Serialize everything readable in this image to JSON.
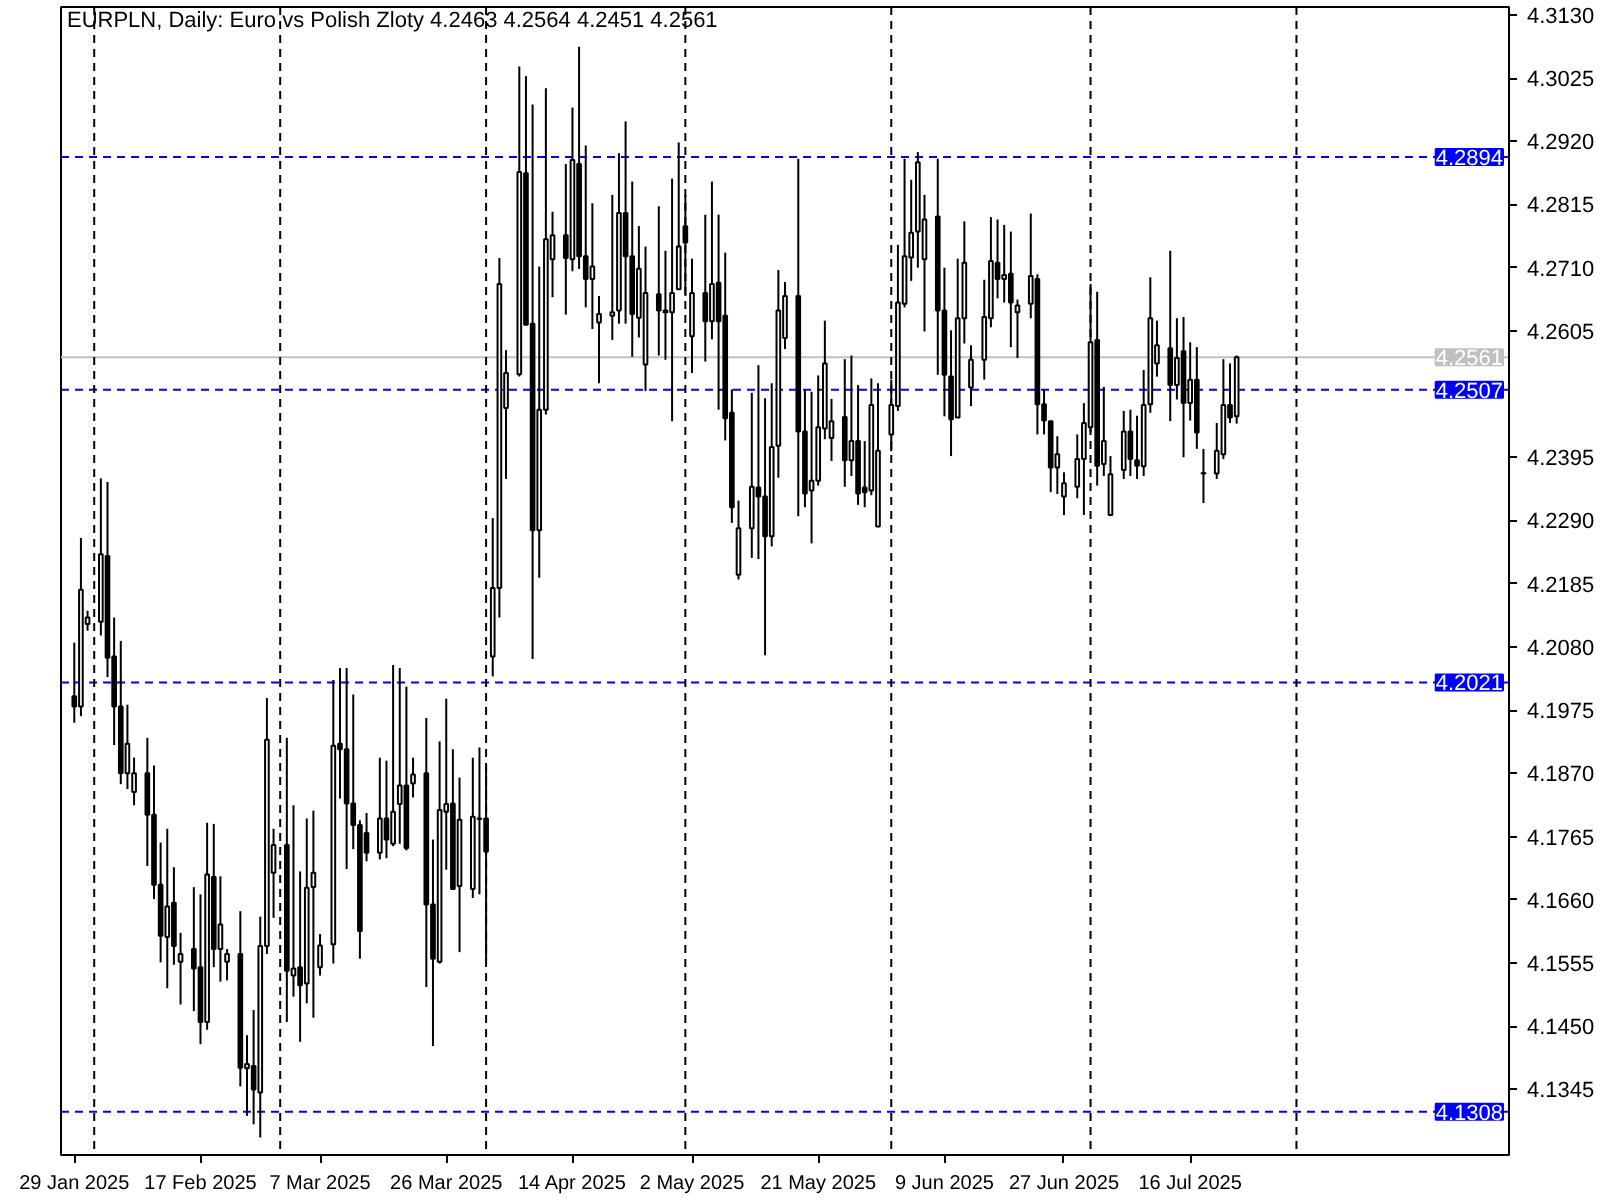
{
  "chart_data": {
    "type": "candlestick",
    "title": "EURPLN, Daily:  Euro vs Polish Zloty  4.2463 4.2564 4.2451 4.2561",
    "color": "#000000",
    "x": [
      "2025-01-29",
      "2025-01-30",
      "2025-01-31",
      "2025-02-02",
      "2025-02-03",
      "2025-02-04",
      "2025-02-05",
      "2025-02-06",
      "2025-02-07",
      "2025-02-09",
      "2025-02-10",
      "2025-02-11",
      "2025-02-12",
      "2025-02-13",
      "2025-02-14",
      "2025-02-16",
      "2025-02-17",
      "2025-02-18",
      "2025-02-19",
      "2025-02-20",
      "2025-02-21",
      "2025-02-23",
      "2025-02-24",
      "2025-02-25",
      "2025-02-26",
      "2025-02-27",
      "2025-02-28",
      "2025-03-02",
      "2025-03-03",
      "2025-03-04",
      "2025-03-05",
      "2025-03-06",
      "2025-03-07",
      "2025-03-09",
      "2025-03-10",
      "2025-03-11",
      "2025-03-12",
      "2025-03-13",
      "2025-03-14",
      "2025-03-16",
      "2025-03-17",
      "2025-03-18",
      "2025-03-19",
      "2025-03-20",
      "2025-03-21",
      "2025-03-23",
      "2025-03-24",
      "2025-03-25",
      "2025-03-26",
      "2025-03-27",
      "2025-03-28",
      "2025-03-30",
      "2025-03-31",
      "2025-04-01",
      "2025-04-02",
      "2025-04-03",
      "2025-04-04",
      "2025-04-06",
      "2025-04-07",
      "2025-04-08",
      "2025-04-09",
      "2025-04-10",
      "2025-04-11",
      "2025-04-13",
      "2025-04-14",
      "2025-04-15",
      "2025-04-16",
      "2025-04-17",
      "2025-04-18",
      "2025-04-20",
      "2025-04-21",
      "2025-04-22",
      "2025-04-23",
      "2025-04-24",
      "2025-04-25",
      "2025-04-27",
      "2025-04-28",
      "2025-04-29",
      "2025-04-30",
      "2025-05-01",
      "2025-05-02",
      "2025-05-04",
      "2025-05-05",
      "2025-05-06",
      "2025-05-07",
      "2025-05-08",
      "2025-05-09",
      "2025-05-11",
      "2025-05-12",
      "2025-05-13",
      "2025-05-14",
      "2025-05-15",
      "2025-05-16",
      "2025-05-18",
      "2025-05-19",
      "2025-05-20",
      "2025-05-21",
      "2025-05-22",
      "2025-05-23",
      "2025-05-25",
      "2025-05-26",
      "2025-05-27",
      "2025-05-28",
      "2025-05-29",
      "2025-05-30",
      "2025-06-01",
      "2025-06-02",
      "2025-06-03",
      "2025-06-04",
      "2025-06-05",
      "2025-06-06",
      "2025-06-08",
      "2025-06-09",
      "2025-06-10",
      "2025-06-11",
      "2025-06-12",
      "2025-06-13",
      "2025-06-15",
      "2025-06-16",
      "2025-06-17",
      "2025-06-18",
      "2025-06-19",
      "2025-06-20",
      "2025-06-22",
      "2025-06-23",
      "2025-06-24",
      "2025-06-25",
      "2025-06-26",
      "2025-06-27",
      "2025-06-29",
      "2025-06-30",
      "2025-07-01",
      "2025-07-02",
      "2025-07-03",
      "2025-07-04",
      "2025-07-06",
      "2025-07-07",
      "2025-07-08",
      "2025-07-09",
      "2025-07-10",
      "2025-07-11",
      "2025-07-13",
      "2025-07-14",
      "2025-07-15",
      "2025-07-16",
      "2025-07-17",
      "2025-07-18",
      "2025-07-20",
      "2025-07-21",
      "2025-07-22",
      "2025-07-23"
    ],
    "ohlc": [
      [
        4.1998,
        4.2087,
        4.1954,
        4.1981
      ],
      [
        4.1981,
        4.2261,
        4.1965,
        4.2175
      ],
      [
        4.2118,
        4.214,
        4.2107,
        4.2129
      ],
      [
        4.2122,
        4.236,
        4.2099,
        4.2234
      ],
      [
        4.2231,
        4.2354,
        4.203,
        4.2062
      ],
      [
        4.2064,
        4.2129,
        4.1917,
        4.1981
      ],
      [
        4.1981,
        4.209,
        4.1852,
        4.187
      ],
      [
        4.187,
        4.1984,
        4.1844,
        4.1919
      ],
      [
        4.1839,
        4.1896,
        4.1817,
        4.187
      ],
      [
        4.187,
        4.1929,
        4.1716,
        4.1801
      ],
      [
        4.1801,
        4.1883,
        4.1661,
        4.1685
      ],
      [
        4.1685,
        4.1755,
        4.1556,
        4.16
      ],
      [
        4.1598,
        4.1778,
        4.1513,
        4.1649
      ],
      [
        4.1655,
        4.1714,
        4.1552,
        4.1583
      ],
      [
        4.1557,
        4.1605,
        4.1486,
        4.157
      ],
      [
        4.1578,
        4.1681,
        4.1475,
        4.1546
      ],
      [
        4.1548,
        4.1669,
        4.142,
        4.1457
      ],
      [
        4.1457,
        4.1788,
        4.1444,
        4.1702
      ],
      [
        4.1698,
        4.1786,
        4.1548,
        4.1578
      ],
      [
        4.1578,
        4.1699,
        4.1524,
        4.1619
      ],
      [
        4.1557,
        4.1578,
        4.1526,
        4.157
      ],
      [
        4.157,
        4.1641,
        4.135,
        4.1381
      ],
      [
        4.138,
        4.1435,
        4.1301,
        4.1387
      ],
      [
        4.1384,
        4.1477,
        4.1287,
        4.1345
      ],
      [
        4.134,
        4.1632,
        4.1265,
        4.1583
      ],
      [
        4.1583,
        4.1995,
        4.157,
        4.1926
      ],
      [
        4.1705,
        4.1778,
        4.163,
        4.1751
      ],
      [
        4.1751,
        4.1929,
        4.1457,
        4.1542
      ],
      [
        4.1534,
        4.1817,
        4.1499,
        4.1546
      ],
      [
        4.1548,
        4.1707,
        4.1424,
        4.1518
      ],
      [
        4.1521,
        4.1795,
        4.1488,
        4.168
      ],
      [
        4.1681,
        4.1808,
        4.1464,
        4.1705
      ],
      [
        4.1548,
        4.1603,
        4.1534,
        4.1584
      ],
      [
        4.1586,
        4.2025,
        4.1554,
        4.1916
      ],
      [
        4.1919,
        4.2045,
        4.1828,
        4.191
      ],
      [
        4.191,
        4.2045,
        4.1711,
        4.182
      ],
      [
        4.182,
        4.2001,
        4.1744,
        4.1784
      ],
      [
        4.1784,
        4.1792,
        4.1562,
        4.1608
      ],
      [
        4.1771,
        4.1804,
        4.1724,
        4.1738
      ],
      [
        4.1738,
        4.1896,
        4.1727,
        4.1795
      ],
      [
        4.1795,
        4.1891,
        4.1729,
        4.176
      ],
      [
        4.1753,
        4.205,
        4.1749,
        4.1806
      ],
      [
        4.1819,
        4.2045,
        4.1753,
        4.185
      ],
      [
        4.185,
        4.2014,
        4.1742,
        4.1746
      ],
      [
        4.1853,
        4.1896,
        4.183,
        4.1868
      ],
      [
        4.187,
        4.1962,
        4.1515,
        4.1652
      ],
      [
        4.1652,
        4.176,
        4.1417,
        4.1562
      ],
      [
        4.1557,
        4.1923,
        4.1554,
        4.1809
      ],
      [
        4.1806,
        4.1994,
        4.171,
        4.1819
      ],
      [
        4.182,
        4.191,
        4.1677,
        4.1678
      ],
      [
        4.1683,
        4.1863,
        4.1573,
        4.1793
      ],
      [
        4.1678,
        4.1896,
        4.1663,
        4.1798
      ],
      [
        4.1795,
        4.1913,
        4.1669,
        4.1794
      ],
      [
        4.1795,
        4.1883,
        4.1559,
        4.174
      ],
      [
        4.2064,
        4.2294,
        4.2031,
        4.2178
      ],
      [
        4.2178,
        4.2726,
        4.2129,
        4.2683
      ],
      [
        4.2477,
        4.2573,
        4.2359,
        4.2535
      ],
      [
        4.2533,
        4.3044,
        4.2529,
        4.2869
      ],
      [
        4.2867,
        4.3028,
        4.2615,
        4.2615
      ],
      [
        4.2617,
        4.2981,
        4.206,
        4.2274
      ],
      [
        4.2274,
        4.2712,
        4.2195,
        4.2474
      ],
      [
        4.2474,
        4.3008,
        4.2466,
        4.2757
      ],
      [
        4.2724,
        4.2803,
        4.2661,
        4.2764
      ],
      [
        4.2764,
        4.2882,
        4.2632,
        4.2726
      ],
      [
        4.2724,
        4.2976,
        4.2704,
        4.2889
      ],
      [
        4.2882,
        4.3077,
        4.2708,
        4.2729
      ],
      [
        4.2729,
        4.2913,
        4.2644,
        4.2691
      ],
      [
        4.2691,
        4.2817,
        4.2608,
        4.2712
      ],
      [
        4.2619,
        4.2663,
        4.2518,
        4.2633
      ],
      [
        4.263,
        4.2831,
        4.259,
        4.2636
      ],
      [
        4.2639,
        4.29,
        4.2617,
        4.2801
      ],
      [
        4.2801,
        4.2953,
        4.2617,
        4.2729
      ],
      [
        4.2729,
        4.2853,
        4.2562,
        4.2633
      ],
      [
        4.2627,
        4.2779,
        4.2594,
        4.2708
      ],
      [
        4.2549,
        4.2745,
        4.2505,
        4.2668
      ],
      [
        4.2666,
        4.2812,
        4.2564,
        4.2639
      ],
      [
        4.2636,
        4.2738,
        4.2557,
        4.2639
      ],
      [
        4.2636,
        4.2858,
        4.2455,
        4.2668
      ],
      [
        4.2674,
        4.2918,
        4.2674,
        4.2745
      ],
      [
        4.2779,
        4.2831,
        4.2663,
        4.2752
      ],
      [
        4.2596,
        4.2725,
        4.2535,
        4.2668
      ],
      [
        4.2668,
        4.2798,
        4.2554,
        4.2621
      ],
      [
        4.2621,
        4.2853,
        4.2591,
        4.2683
      ],
      [
        4.2685,
        4.2798,
        4.2474,
        4.2621
      ],
      [
        4.263,
        4.2735,
        4.2423,
        4.246
      ],
      [
        4.2469,
        4.2508,
        4.2286,
        4.2312
      ],
      [
        4.22,
        4.2323,
        4.2192,
        4.2277
      ],
      [
        4.2277,
        4.2502,
        4.2228,
        4.2346
      ],
      [
        4.2345,
        4.2548,
        4.2226,
        4.233
      ],
      [
        4.233,
        4.2493,
        4.2066,
        4.2264
      ],
      [
        4.2264,
        4.2518,
        4.2247,
        4.2412
      ],
      [
        4.2414,
        4.2706,
        4.2361,
        4.2639
      ],
      [
        4.2593,
        4.2686,
        4.2575,
        4.2663
      ],
      [
        4.2663,
        4.2891,
        4.2297,
        4.2438
      ],
      [
        4.2438,
        4.2507,
        4.2312,
        4.2335
      ],
      [
        4.234,
        4.2504,
        4.2252,
        4.2356
      ],
      [
        4.2356,
        4.2531,
        4.2348,
        4.2445
      ],
      [
        4.2443,
        4.2622,
        4.2425,
        4.2551
      ],
      [
        4.2427,
        4.2492,
        4.2389,
        4.2455
      ],
      [
        4.2462,
        4.2558,
        4.2346,
        4.239
      ],
      [
        4.239,
        4.2564,
        4.2364,
        4.2422
      ],
      [
        4.2422,
        4.2515,
        4.2316,
        4.2335
      ],
      [
        4.2345,
        4.2422,
        4.2312,
        4.2337
      ],
      [
        4.234,
        4.2526,
        4.2332,
        4.2482
      ],
      [
        4.228,
        4.2518,
        4.228,
        4.2406
      ],
      [
        4.2433,
        4.2524,
        4.2405,
        4.2482
      ],
      [
        4.248,
        4.2748,
        4.2472,
        4.2652
      ],
      [
        4.265,
        4.2891,
        4.2644,
        4.2729
      ],
      [
        4.2727,
        4.2856,
        4.2688,
        4.2768
      ],
      [
        4.277,
        4.2902,
        4.271,
        4.2885
      ],
      [
        4.2724,
        4.2831,
        4.2604,
        4.279
      ],
      [
        4.2795,
        4.2891,
        4.2532,
        4.2639
      ],
      [
        4.2639,
        4.271,
        4.2463,
        4.2532
      ],
      [
        4.2529,
        4.2606,
        4.2397,
        4.2458
      ],
      [
        4.2461,
        4.2725,
        4.2461,
        4.2626
      ],
      [
        4.2626,
        4.2787,
        4.2584,
        4.2718
      ],
      [
        4.2511,
        4.2581,
        4.248,
        4.2557
      ],
      [
        4.2557,
        4.269,
        4.2524,
        4.2628
      ],
      [
        4.2626,
        4.2794,
        4.2611,
        4.2721
      ],
      [
        4.2718,
        4.279,
        4.2659,
        4.2691
      ],
      [
        4.2691,
        4.2781,
        4.2652,
        4.2698
      ],
      [
        4.27,
        4.277,
        4.2578,
        4.2652
      ],
      [
        4.2636,
        4.2657,
        4.256,
        4.2647
      ],
      [
        4.265,
        4.28,
        4.2626,
        4.2696
      ],
      [
        4.2691,
        4.2699,
        4.2433,
        4.2483
      ],
      [
        4.2483,
        4.2507,
        4.2433,
        4.2456
      ],
      [
        4.2455,
        4.2455,
        4.2337,
        4.2378
      ],
      [
        4.2378,
        4.243,
        4.2334,
        4.24
      ],
      [
        4.233,
        4.237,
        4.2299,
        4.2352
      ],
      [
        4.2346,
        4.2433,
        4.2327,
        4.2392
      ],
      [
        4.2392,
        4.2485,
        4.2299,
        4.2452
      ],
      [
        4.2445,
        4.2683,
        4.2436,
        4.2586
      ],
      [
        4.259,
        4.267,
        4.2348,
        4.2381
      ],
      [
        4.2384,
        4.2512,
        4.2364,
        4.2422
      ],
      [
        4.2299,
        4.2397,
        4.2299,
        4.2367
      ],
      [
        4.2374,
        4.2472,
        4.2359,
        4.2438
      ],
      [
        4.2438,
        4.2474,
        4.2364,
        4.2392
      ],
      [
        4.239,
        4.2464,
        4.2359,
        4.2381
      ],
      [
        4.238,
        4.254,
        4.2364,
        4.2482
      ],
      [
        4.2483,
        4.2694,
        4.2469,
        4.2626
      ],
      [
        4.2551,
        4.2622,
        4.2529,
        4.2581
      ],
      [
        4.2576,
        4.2738,
        4.2455,
        4.2515
      ],
      [
        4.2515,
        4.2626,
        4.2491,
        4.256
      ],
      [
        4.2571,
        4.2628,
        4.2395,
        4.2485
      ],
      [
        4.2485,
        4.2586,
        4.2456,
        4.2524
      ],
      [
        4.2524,
        4.2578,
        4.2409,
        4.2436
      ],
      [
        4.2368,
        4.2409,
        4.2319,
        4.2369
      ],
      [
        4.2368,
        4.2452,
        4.2359,
        4.2406
      ],
      [
        4.24,
        4.2558,
        4.2392,
        4.2482
      ],
      [
        4.2482,
        4.2551,
        4.2452,
        4.2461
      ],
      [
        4.2463,
        4.2564,
        4.2451,
        4.2561
      ]
    ],
    "xlim": [
      "2025-01-27",
      "2025-09-02"
    ],
    "ylim": [
      4.1236,
      4.3143
    ],
    "xticks": [
      {
        "value": "2025-01-29",
        "label": "29 Jan 2025"
      },
      {
        "value": "2025-02-17",
        "label": "17 Feb 2025"
      },
      {
        "value": "2025-03-07",
        "label": "7 Mar 2025"
      },
      {
        "value": "2025-03-26",
        "label": "26 Mar 2025"
      },
      {
        "value": "2025-04-14",
        "label": "14 Apr 2025"
      },
      {
        "value": "2025-05-02",
        "label": "2 May 2025"
      },
      {
        "value": "2025-05-21",
        "label": "21 May 2025"
      },
      {
        "value": "2025-06-09",
        "label": "9 Jun 2025"
      },
      {
        "value": "2025-06-27",
        "label": "27 Jun 2025"
      },
      {
        "value": "2025-07-16",
        "label": "16 Jul 2025"
      }
    ],
    "yticks": [
      {
        "value": 4.313,
        "label": "4.3130"
      },
      4.3025,
      {
        "value": 4.292,
        "label": "4.2920"
      },
      4.2815,
      {
        "value": 4.271,
        "label": "4.2710"
      },
      4.2605,
      4.2395,
      {
        "value": 4.229,
        "label": "4.2290"
      },
      4.2185,
      {
        "value": 4.208,
        "label": "4.2080"
      },
      4.1975,
      {
        "value": 4.187,
        "label": "4.1870"
      },
      4.1765,
      {
        "value": 4.166,
        "label": "4.1660"
      },
      4.1555,
      {
        "value": 4.145,
        "label": "4.1450"
      },
      4.1345
    ],
    "ref_lines": [
      {
        "axis": "y",
        "value": 4.2894,
        "label": "4.2894",
        "color": "#0000ff",
        "line_style": "dashed"
      },
      {
        "axis": "y",
        "value": 4.2507,
        "label": "4.2507",
        "color": "#0000ff",
        "line_style": "dashed"
      },
      {
        "axis": "y",
        "value": 4.2021,
        "label": "4.2021",
        "color": "#0000ff",
        "line_style": "dashed"
      },
      {
        "axis": "y",
        "value": 4.1308,
        "label": "4.1308",
        "color": "#0000ff",
        "line_style": "dashed"
      },
      {
        "axis": "y",
        "value": 4.2561,
        "label": "4.2561",
        "color": "#c0c0c0",
        "line_style": "solid"
      },
      {
        "axis": "x",
        "value": "2025-02-01",
        "color": "#000000",
        "line_style": "dashed"
      },
      {
        "axis": "x",
        "value": "2025-03-01",
        "color": "#000000",
        "line_style": "dashed"
      },
      {
        "axis": "x",
        "value": "2025-04-01",
        "color": "#000000",
        "line_style": "dashed"
      },
      {
        "axis": "x",
        "value": "2025-05-01",
        "color": "#000000",
        "line_style": "dashed"
      },
      {
        "axis": "x",
        "value": "2025-06-01",
        "color": "#000000",
        "line_style": "dashed"
      },
      {
        "axis": "x",
        "value": "2025-07-01",
        "color": "#000000",
        "line_style": "dashed"
      },
      {
        "axis": "x",
        "value": "2025-08-01",
        "color": "#000000",
        "line_style": "dashed"
      }
    ]
  }
}
